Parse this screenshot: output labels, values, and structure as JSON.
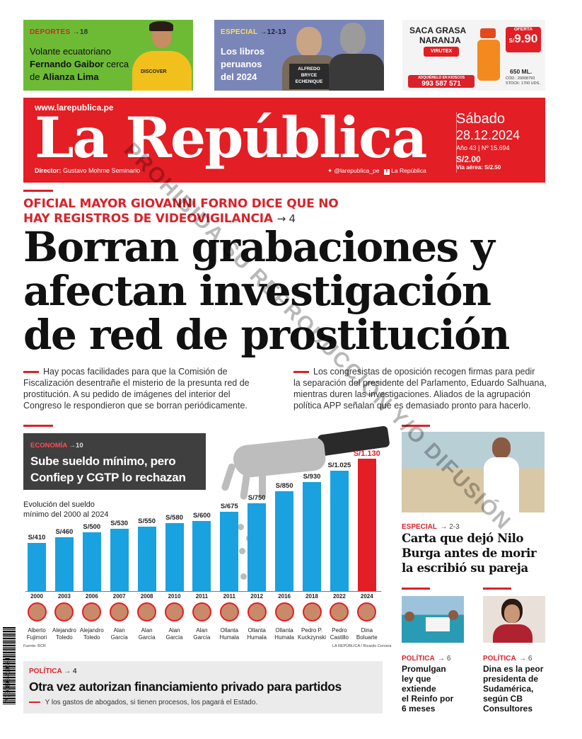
{
  "promos": {
    "deportes": {
      "section": "DEPORTES",
      "page": "→18",
      "text_1": "Volante ecuatoriano",
      "name": "Fernando Gaibor",
      "text_2": "cerca",
      "text_3": "de",
      "team": "Alianza Lima",
      "shirt_text": "DISCOVER"
    },
    "especial": {
      "section": "ESPECIAL",
      "page": "→12-13",
      "line_1": "Los libros",
      "line_2": "peruanos",
      "line_3": "del 2024",
      "book_1": "ALFREDO",
      "book_2": "BRYCE",
      "book_3": "ECHENIQUE"
    },
    "ad": {
      "line_1": "SACA GRASA",
      "line_2": "NARANJA",
      "brand": "VIRUTEX",
      "offer": "OFERTA",
      "price_symbol": "S/",
      "price": "9.90",
      "volume": "650 ML.",
      "kiosk": "ADQUIÉRELO EN KIOSCOS",
      "phone": "993 587 571",
      "code": "CÓD.: 20008793",
      "stock": "STOCK: 1700 UDS."
    }
  },
  "masthead": {
    "url": "www.larepublica.pe",
    "logo": "La República",
    "director_label": "Director:",
    "director_name": "Gustavo Mohme Seminario",
    "twitter": "@larepublica_pe",
    "facebook": "La República",
    "day": "Sábado",
    "date": "28.12.2024",
    "edition": "Año 43 | Nº 15.694",
    "price": "S/2.00",
    "air_price": "Vía aérea: S/2.50"
  },
  "lead_story": {
    "kicker_1": "OFICIAL MAYOR GIOVANNI FORNO DICE QUE NO",
    "kicker_2": "HAY REGISTROS DE VIDEOVIGILANCIA",
    "kicker_page": "→ 4",
    "headline_1": "Borran grabaciones y",
    "headline_2": "afectan investigación",
    "headline_3": "de red de prostitución",
    "left_lines": [
      "Hay pocas facilidades para que la Comisión de",
      "Fiscalización desentrañe el misterio de la presunta red de",
      "prostitución. A su pedido de imágenes del interior del",
      "Congreso le respondieron que se borran periódicamente."
    ],
    "right_lines": [
      "Los congresistas de oposición recogen firmas para pedir",
      "la separación del presidente del Parlamento, Eduardo Salhuana,",
      "mientras duren las investigaciones. Aliados de la agrupación",
      "política APP señalan que es demasiado pronto para hacerlo."
    ]
  },
  "economy": {
    "section": "ECONOMÍA",
    "page": "→10",
    "headline_1": "Sube sueldo mínimo, pero",
    "headline_2": "Confiep y CGTP lo rechazan",
    "chart_title_1": "Evolución del sueldo",
    "chart_title_2": "mínimo del 2000 al 2024",
    "source": "Fuente: BCR",
    "credit": "LA REPÚBLICA / Ricardo Cervera"
  },
  "chart_data": {
    "type": "bar",
    "title": "Evolución del sueldo mínimo del 2000 al 2024",
    "categories": [
      "2000",
      "2003",
      "2006",
      "2007",
      "2008",
      "2010",
      "2011",
      "2011",
      "2012",
      "2016",
      "2018",
      "2022",
      "2024"
    ],
    "values": [
      410,
      460,
      500,
      530,
      550,
      580,
      600,
      675,
      750,
      850,
      930,
      1025,
      1130
    ],
    "labels": [
      "S/410",
      "S/460",
      "S/500",
      "S/530",
      "S/550",
      "S/580",
      "S/600",
      "S/675",
      "S/750",
      "S/850",
      "S/930",
      "S/1.025",
      "S/1.130"
    ],
    "presidents": [
      [
        "Alberto",
        "Fujimori"
      ],
      [
        "Alejandro",
        "Toledo"
      ],
      [
        "Alejandro",
        "Toledo"
      ],
      [
        "Alan",
        "García"
      ],
      [
        "Alan",
        "García"
      ],
      [
        "Alan",
        "García"
      ],
      [
        "Alan",
        "García"
      ],
      [
        "Ollanta",
        "Humala"
      ],
      [
        "Ollanta",
        "Humala"
      ],
      [
        "Ollanta",
        "Humala"
      ],
      [
        "Pedro P.",
        "Kuckzynski"
      ],
      [
        "Pedro",
        "Castillo"
      ],
      [
        "Dina",
        "Boluarte"
      ]
    ],
    "highlight_index": 12,
    "colors": {
      "bar": "#1aa1e0",
      "highlight": "#e31e24"
    },
    "ylim": [
      0,
      1200
    ]
  },
  "politics_box": {
    "section": "POLÍTICA",
    "page": "→ 4",
    "headline": "Otra vez autorizan financiamiento privado para partidos",
    "summary": "Y los gastos de abogados, si tienen procesos, los pagará el Estado."
  },
  "right_column": {
    "especial": {
      "section": "ESPECIAL",
      "page": "→ 2-3",
      "headline_1": "Carta que dejó Nilo",
      "headline_2": "Burga antes de morir",
      "headline_3": "la escribió su pareja"
    },
    "politica_1": {
      "section": "POLÍTICA",
      "page": "→ 6",
      "lines": [
        "Promulgan",
        "ley que",
        "extiende",
        "el Reinfo por",
        "6 meses"
      ]
    },
    "politica_2": {
      "section": "POLÍTICA",
      "page": "→ 6",
      "lines": [
        "Dina es la peor",
        "presidenta de",
        "Sudamérica,",
        "según CB",
        "Consultores"
      ]
    }
  },
  "barcode_number": "7 750893 419634",
  "watermark": "PROHIBIDA SU REPRODUCCIÓN Y/O DIFUSIÓN"
}
